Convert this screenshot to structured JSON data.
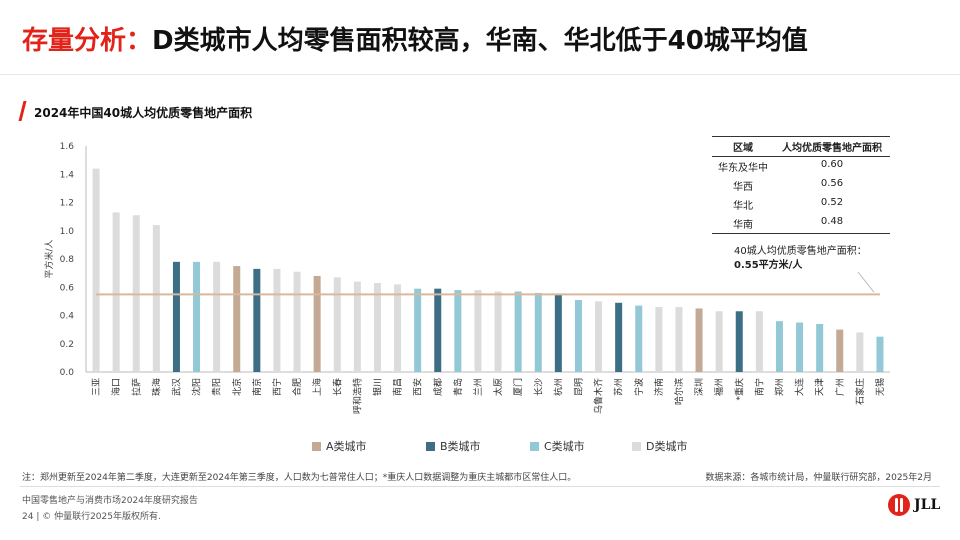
{
  "header": {
    "title_accent": "存量分析：",
    "title_main": "D类城市人均零售面积较高，华南、华北低于40城平均值"
  },
  "chart_data": {
    "type": "bar",
    "title": "2024年中国40城人均优质零售地产面积",
    "ylabel": "平方米/人",
    "ylim": [
      0,
      1.6
    ],
    "yticks": [
      "0.0",
      "0.2",
      "0.4",
      "0.6",
      "0.8",
      "1.0",
      "1.2",
      "1.4",
      "1.6"
    ],
    "grid": false,
    "categories": [
      "三亚",
      "海口",
      "拉萨",
      "珠海",
      "武汉",
      "沈阳",
      "贵阳",
      "北京",
      "南京",
      "西宁",
      "合肥",
      "上海",
      "长春",
      "呼和浩特",
      "银川",
      "南昌",
      "西安",
      "成都",
      "青岛",
      "兰州",
      "太原",
      "厦门",
      "长沙",
      "杭州",
      "昆明",
      "乌鲁木齐",
      "苏州",
      "宁波",
      "济南",
      "哈尔滨",
      "深圳",
      "福州",
      "*重庆",
      "南宁",
      "郑州",
      "大连",
      "天津",
      "广州",
      "石家庄",
      "无锡"
    ],
    "values": [
      1.44,
      1.13,
      1.11,
      1.04,
      0.78,
      0.78,
      0.78,
      0.75,
      0.73,
      0.73,
      0.71,
      0.68,
      0.67,
      0.64,
      0.63,
      0.62,
      0.59,
      0.59,
      0.58,
      0.58,
      0.57,
      0.57,
      0.56,
      0.55,
      0.51,
      0.5,
      0.49,
      0.47,
      0.46,
      0.46,
      0.45,
      0.43,
      0.43,
      0.43,
      0.36,
      0.35,
      0.34,
      0.3,
      0.28,
      0.25
    ],
    "classes": [
      "D",
      "D",
      "D",
      "D",
      "B",
      "C",
      "D",
      "A",
      "B",
      "D",
      "D",
      "A",
      "D",
      "D",
      "D",
      "D",
      "C",
      "B",
      "C",
      "D",
      "D",
      "C",
      "C",
      "B",
      "C",
      "D",
      "B",
      "C",
      "D",
      "D",
      "A",
      "D",
      "B",
      "D",
      "C",
      "C",
      "C",
      "A",
      "D",
      "C"
    ],
    "reference_line": {
      "value": 0.55,
      "label": "40城人均优质零售地产面积：",
      "value_label": "0.55平方米/人",
      "color": "#d9b89c"
    },
    "legend": [
      {
        "key": "A",
        "label": "A类城市",
        "color": "#c4a994"
      },
      {
        "key": "B",
        "label": "B类城市",
        "color": "#3c6e85"
      },
      {
        "key": "C",
        "label": "C类城市",
        "color": "#93c8d6"
      },
      {
        "key": "D",
        "label": "D类城市",
        "color": "#dcdcdc"
      }
    ],
    "legend_position": "bottom"
  },
  "region_table": {
    "headers": [
      "区域",
      "人均优质零售地产面积"
    ],
    "rows": [
      {
        "region": "华东及华中",
        "value": "0.60"
      },
      {
        "region": "华西",
        "value": "0.56"
      },
      {
        "region": "华北",
        "value": "0.52"
      },
      {
        "region": "华南",
        "value": "0.48"
      }
    ]
  },
  "footer": {
    "footnote": "注：郑州更新至2024年第二季度，大连更新至2024年第三季度，人口数为七普常住人口；*重庆人口数据调整为重庆主城都市区常住人口。",
    "source": "数据来源：各城市统计局，仲量联行研究部，2025年2月",
    "report": "中国零售地产与消费市场2024年度研究报告",
    "page_line": "24 | © 仲量联行2025年版权所有.",
    "logo_text": "JLL"
  },
  "colors": {
    "accent": "#e2231a"
  }
}
